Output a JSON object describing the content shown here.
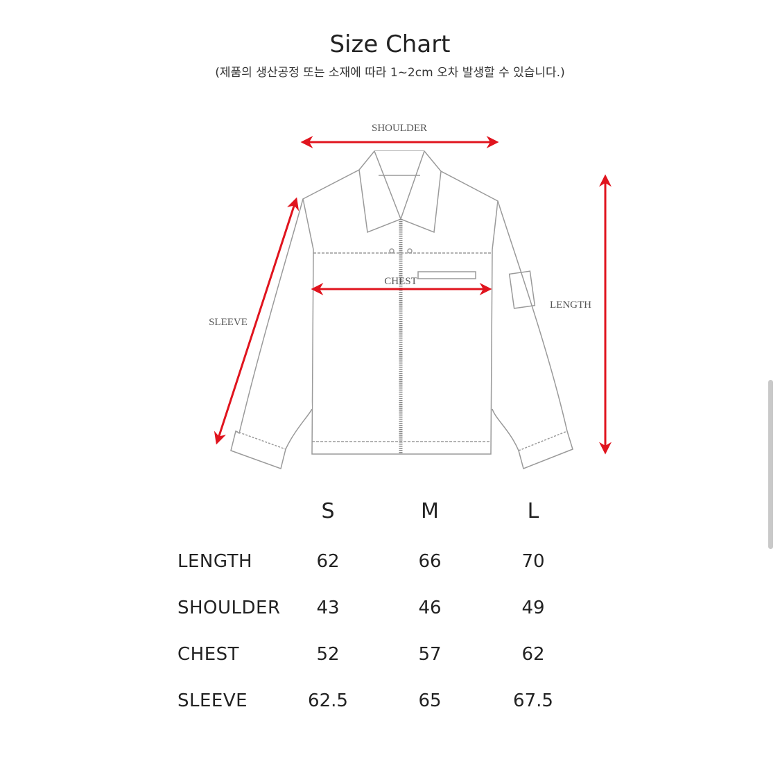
{
  "title": "Size Chart",
  "subtitle": "(제품의 생산공정 또는 소재에 따라 1~2cm 오차 발생할 수 있습니다.)",
  "diagram": {
    "labels": {
      "shoulder": "SHOULDER",
      "chest": "CHEST",
      "length": "LENGTH",
      "sleeve": "SLEEVE"
    },
    "arrow_color": "#e0141e"
  },
  "table": {
    "sizes": [
      "S",
      "M",
      "L"
    ],
    "rows": [
      {
        "label": "LENGTH",
        "values": [
          "62",
          "66",
          "70"
        ]
      },
      {
        "label": "SHOULDER",
        "values": [
          "43",
          "46",
          "49"
        ]
      },
      {
        "label": "CHEST",
        "values": [
          "52",
          "57",
          "62"
        ]
      },
      {
        "label": "SLEEVE",
        "values": [
          "62.5",
          "65",
          "67.5"
        ]
      }
    ]
  }
}
